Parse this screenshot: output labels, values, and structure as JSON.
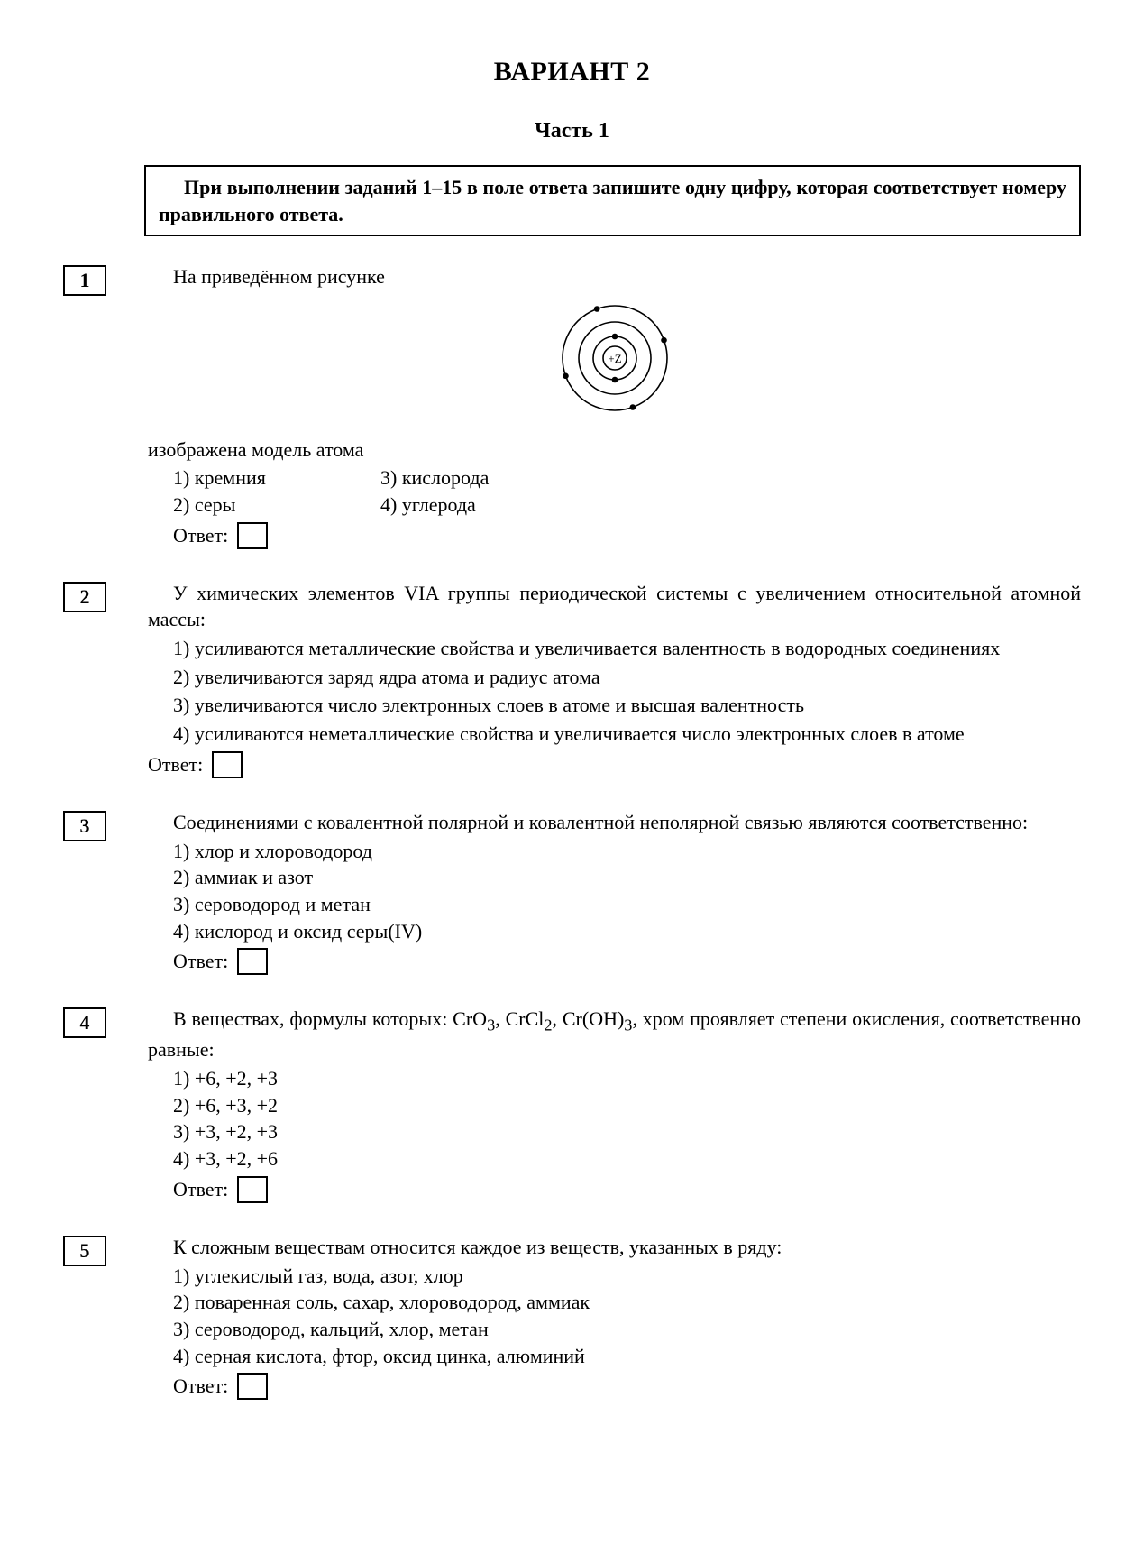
{
  "title": "ВАРИАНТ 2",
  "subtitle": "Часть 1",
  "instruction": "При выполнении заданий 1–15 в поле ответа запишите одну цифру, которая соответствует номеру правильного ответа.",
  "answer_label": "Ответ:",
  "atom": {
    "nucleus_label": "+Z",
    "shell_radii": [
      24,
      40,
      58
    ],
    "electrons": [
      {
        "r": 24,
        "angles_deg": [
          90,
          270
        ]
      },
      {
        "r": 58,
        "angles_deg": [
          20,
          110,
          200,
          290
        ]
      }
    ],
    "stroke": "#000000",
    "electron_fill": "#000000",
    "electron_r": 3.3
  },
  "q1": {
    "num": "1",
    "lead": "На приведённом рисунке",
    "continuation": "изображена модель атома",
    "opts_col1": [
      "1) кремния",
      "2) серы"
    ],
    "opts_col2": [
      "3) кислорода",
      "4) углерода"
    ]
  },
  "q2": {
    "num": "2",
    "lead": "У химических элементов VIA группы периодической системы с увеличением относительной атомной массы:",
    "opts": [
      "1) усиливаются металлические свойства и увеличивается валентность в водородных соединениях",
      "2) увеличиваются заряд ядра атома и радиус атома",
      "3) увеличиваются число электронных слоев в атоме и высшая валентность",
      "4) усиливаются неметаллические свойства и увеличивается число электронных слоев в атоме"
    ]
  },
  "q3": {
    "num": "3",
    "lead": "Соединениями с ковалентной полярной и ковалентной неполярной связью являются соответственно:",
    "opts": [
      "1) хлор и хлороводород",
      "2) аммиак и азот",
      "3) сероводород и метан",
      "4) кислород и оксид серы(IV)"
    ]
  },
  "q4": {
    "num": "4",
    "lead_pre": "В веществах, формулы которых: CrO",
    "lead_mid1": ", CrCl",
    "lead_mid2": ", Cr(OH)",
    "lead_post": ", хром проявляет степени окисления, соответственно равные:",
    "sub1": "3",
    "sub2": "2",
    "sub3": "3",
    "opts": [
      "1) +6, +2, +3",
      "2) +6, +3, +2",
      "3) +3, +2, +3",
      "4) +3, +2, +6"
    ]
  },
  "q5": {
    "num": "5",
    "lead": "К сложным веществам относится каждое из веществ, указанных в ряду:",
    "opts": [
      "1) углекислый газ, вода, азот, хлор",
      "2) поваренная соль, сахар, хлороводород, аммиак",
      "3) сероводород, кальций, хлор, метан",
      "4) серная кислота, фтор, оксид цинка, алюминий"
    ]
  }
}
